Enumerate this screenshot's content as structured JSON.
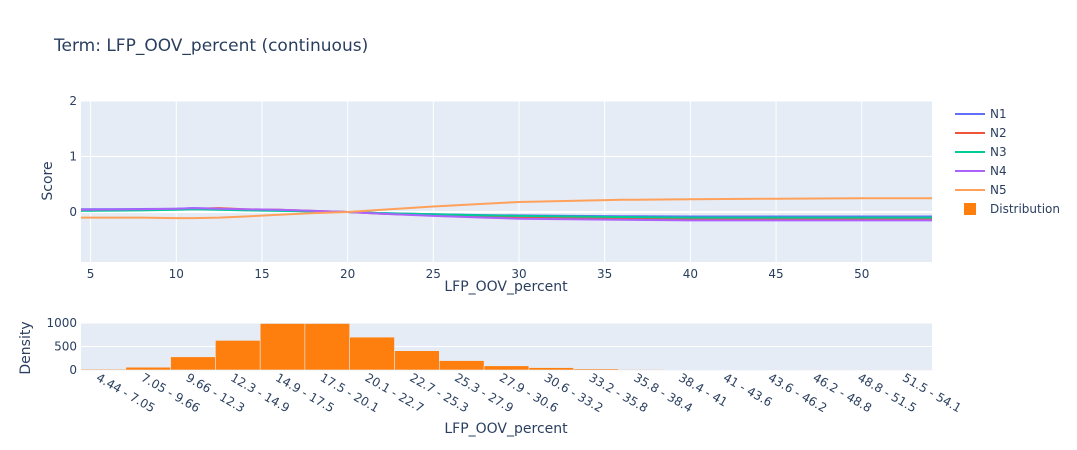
{
  "chart_data": [
    {
      "type": "line",
      "title": "Term: LFP_OOV_percent (continuous)",
      "xlabel": "LFP_OOV_percent",
      "ylabel": "Score",
      "xlim": [
        4.44,
        54.1
      ],
      "ylim": [
        -0.9,
        2
      ],
      "x_ticks": [
        "5",
        "10",
        "15",
        "20",
        "25",
        "30",
        "35",
        "40",
        "45",
        "50"
      ],
      "y_ticks": [
        "2",
        "1",
        "0"
      ],
      "grid": true,
      "legend_position": "right",
      "x": [
        4.44,
        8,
        10,
        11,
        12.5,
        14,
        16,
        18,
        20,
        22,
        25,
        28,
        30,
        33,
        36,
        40,
        45,
        50,
        54.1
      ],
      "series": [
        {
          "name": "N1",
          "color": "#636efa",
          "values": [
            0.05,
            0.055,
            0.06,
            0.07,
            0.06,
            0.04,
            0.03,
            0.015,
            0,
            -0.02,
            -0.04,
            -0.055,
            -0.06,
            -0.07,
            -0.075,
            -0.08,
            -0.08,
            -0.08,
            -0.08
          ]
        },
        {
          "name": "N2",
          "color": "#ef553b",
          "values": [
            0.03,
            0.04,
            0.05,
            0.06,
            0.07,
            0.05,
            0.04,
            0.02,
            0,
            -0.03,
            -0.06,
            -0.09,
            -0.1,
            -0.11,
            -0.12,
            -0.13,
            -0.13,
            -0.13,
            -0.13
          ]
        },
        {
          "name": "N3",
          "color": "#00cc96",
          "values": [
            0.02,
            0.03,
            0.04,
            0.05,
            0.04,
            0.03,
            0.02,
            0.01,
            0,
            -0.02,
            -0.04,
            -0.06,
            -0.07,
            -0.08,
            -0.09,
            -0.1,
            -0.1,
            -0.1,
            -0.1
          ]
        },
        {
          "name": "N4",
          "color": "#ab63fa",
          "values": [
            0.04,
            0.05,
            0.06,
            0.07,
            0.06,
            0.05,
            0.04,
            0.02,
            0,
            -0.03,
            -0.07,
            -0.1,
            -0.12,
            -0.13,
            -0.14,
            -0.15,
            -0.15,
            -0.15,
            -0.15
          ]
        },
        {
          "name": "N5",
          "color": "#ffa15a",
          "values": [
            -0.1,
            -0.1,
            -0.11,
            -0.11,
            -0.1,
            -0.08,
            -0.05,
            -0.02,
            0,
            0.04,
            0.1,
            0.15,
            0.18,
            0.2,
            0.22,
            0.23,
            0.24,
            0.25,
            0.25
          ]
        }
      ],
      "legend": [
        "N1",
        "N2",
        "N3",
        "N4",
        "N5",
        "Distribution"
      ]
    },
    {
      "type": "bar",
      "xlabel": "LFP_OOV_percent",
      "ylabel": "Density",
      "ylim": [
        0,
        1000
      ],
      "y_ticks": [
        "1000",
        "500",
        "0"
      ],
      "bar_color": "#ff7f0e",
      "categories": [
        "4.44 - 7.05",
        "7.05 - 9.66",
        "9.66 - 12.3",
        "12.3 - 14.9",
        "14.9 - 17.5",
        "17.5 - 20.1",
        "20.1 - 22.7",
        "22.7 - 25.3",
        "25.3 - 27.9",
        "27.9 - 30.6",
        "30.6 - 33.2",
        "33.2 - 35.8",
        "35.8 - 38.4",
        "38.4 - 41",
        "41 - 43.6",
        "43.6 - 46.2",
        "46.2 - 48.8",
        "48.8 - 51.5",
        "51.5 - 54.1"
      ],
      "values": [
        20,
        60,
        280,
        630,
        990,
        990,
        700,
        410,
        200,
        90,
        50,
        25,
        15,
        10,
        5,
        5,
        3,
        2,
        2
      ]
    }
  ]
}
